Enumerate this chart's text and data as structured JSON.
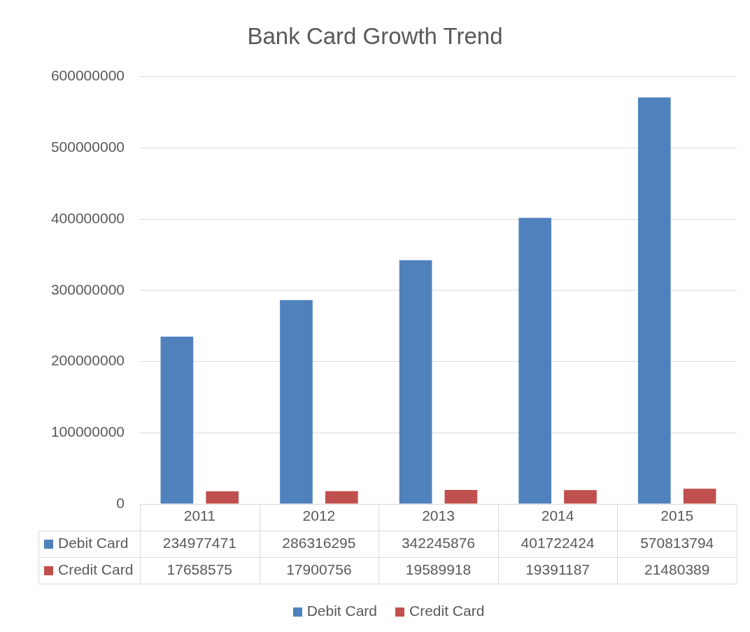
{
  "chart_data": {
    "type": "bar",
    "title": "Bank Card Growth Trend",
    "categories": [
      "2011",
      "2012",
      "2013",
      "2014",
      "2015"
    ],
    "series": [
      {
        "name": "Debit Card",
        "color": "#4f81bd",
        "values": [
          234977471,
          286316295,
          342245876,
          401722424,
          570813794
        ]
      },
      {
        "name": "Credit Card",
        "color": "#c0504d",
        "values": [
          17658575,
          17900756,
          19589918,
          19391187,
          21480389
        ]
      }
    ],
    "ylim": [
      0,
      600000000
    ],
    "yticks": [
      0,
      100000000,
      200000000,
      300000000,
      400000000,
      500000000,
      600000000
    ],
    "grid": "y",
    "legend": "bottom",
    "data_labels": true
  }
}
